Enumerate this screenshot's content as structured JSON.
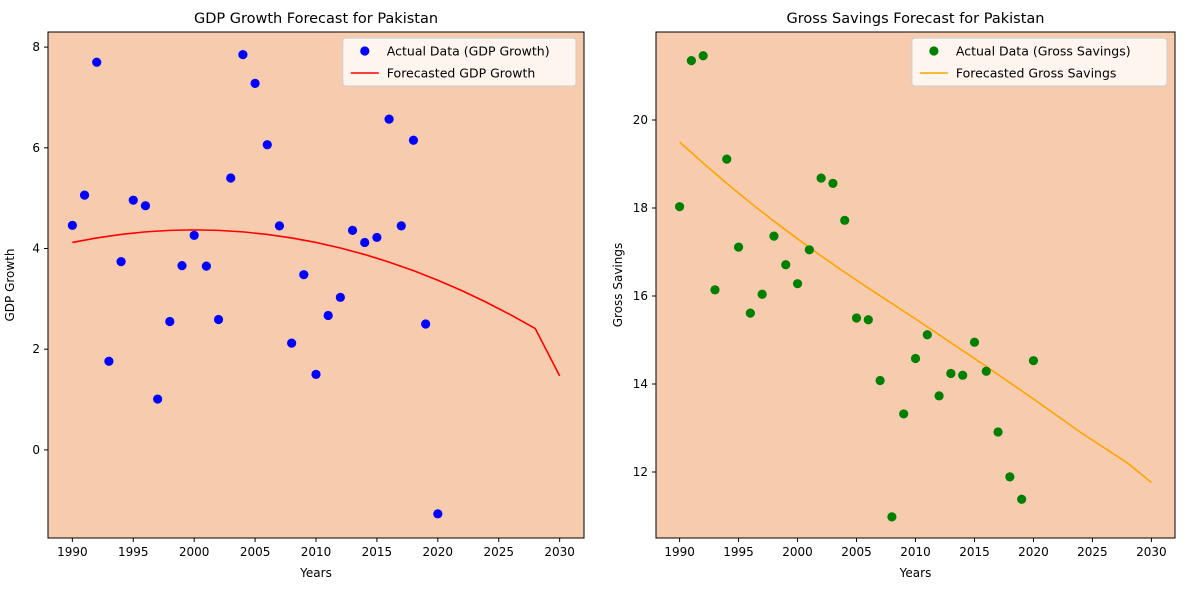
{
  "figure": {
    "chart_data": [
      {
        "type": "scatter",
        "title": "GDP Growth Forecast for Pakistan",
        "xlabel": "Years",
        "ylabel": "GDP Growth",
        "xlim": [
          1988.0,
          2032.0
        ],
        "ylim": [
          -1.75,
          8.3
        ],
        "xticks": [
          1990,
          1995,
          2000,
          2005,
          2010,
          2015,
          2020,
          2025,
          2030
        ],
        "yticks": [
          0,
          2,
          4,
          6,
          8
        ],
        "background": "#f7cbad",
        "legend_position": "top-right",
        "series": [
          {
            "name": "Actual Data (GDP Growth)",
            "kind": "scatter",
            "color": "#0000ff",
            "x": [
              1990,
              1991,
              1992,
              1993,
              1994,
              1995,
              1996,
              1997,
              1998,
              1999,
              2000,
              2001,
              2002,
              2003,
              2004,
              2005,
              2006,
              2007,
              2008,
              2009,
              2010,
              2011,
              2012,
              2013,
              2014,
              2015,
              2016,
              2017,
              2018,
              2019,
              2020
            ],
            "y": [
              4.46,
              5.06,
              7.7,
              1.76,
              3.74,
              4.96,
              4.85,
              1.01,
              2.55,
              3.66,
              4.26,
              3.65,
              2.59,
              5.4,
              7.85,
              7.28,
              6.06,
              4.45,
              2.12,
              3.48,
              1.5,
              2.67,
              3.03,
              4.36,
              4.12,
              4.22,
              6.57,
              4.45,
              6.15,
              2.5,
              -1.27
            ]
          },
          {
            "name": "Forecasted GDP Growth",
            "kind": "line",
            "color": "#ff0000",
            "x": [
              1990,
              1992,
              1994,
              1996,
              1998,
              2000,
              2002,
              2004,
              2006,
              2008,
              2010,
              2012,
              2014,
              2016,
              2018,
              2020,
              2022,
              2024,
              2026,
              2028,
              2030
            ],
            "y": [
              4.12,
              4.21,
              4.28,
              4.33,
              4.36,
              4.37,
              4.36,
              4.33,
              4.28,
              4.21,
              4.12,
              4.01,
              3.88,
              3.73,
              3.56,
              3.37,
              3.16,
              2.93,
              2.68,
              2.41,
              1.47
            ]
          }
        ]
      },
      {
        "type": "scatter",
        "title": "Gross Savings Forecast for Pakistan",
        "xlabel": "Years",
        "ylabel": "Gross Savings",
        "xlim": [
          1988.0,
          2032.0
        ],
        "ylim": [
          10.5,
          22.0
        ],
        "xticks": [
          1990,
          1995,
          2000,
          2005,
          2010,
          2015,
          2020,
          2025,
          2030
        ],
        "yticks": [
          12,
          14,
          16,
          18,
          20
        ],
        "background": "#f7cbad",
        "legend_position": "top-right",
        "series": [
          {
            "name": "Actual Data (Gross Savings)",
            "kind": "scatter",
            "color": "#008000",
            "x": [
              1990,
              1991,
              1992,
              1993,
              1994,
              1995,
              1996,
              1997,
              1998,
              1999,
              2000,
              2001,
              2002,
              2003,
              2004,
              2005,
              2006,
              2007,
              2008,
              2009,
              2010,
              2011,
              2012,
              2013,
              2014,
              2015,
              2016,
              2017,
              2018,
              2019,
              2020
            ],
            "y": [
              18.03,
              21.35,
              21.46,
              16.14,
              19.11,
              17.11,
              15.61,
              16.04,
              17.36,
              16.71,
              16.28,
              17.05,
              18.68,
              18.56,
              17.72,
              15.5,
              15.46,
              14.08,
              10.98,
              13.32,
              14.58,
              15.12,
              13.73,
              14.24,
              14.2,
              14.95,
              14.29,
              12.91,
              11.89,
              11.38,
              14.53
            ]
          },
          {
            "name": "Forecasted Gross Savings",
            "kind": "line",
            "color": "#ffa500",
            "x": [
              1990,
              1992,
              1994,
              1996,
              1998,
              2000,
              2002,
              2004,
              2006,
              2008,
              2010,
              2012,
              2014,
              2016,
              2018,
              2020,
              2022,
              2024,
              2026,
              2028,
              2030
            ],
            "y": [
              19.5,
              19.02,
              18.56,
              18.12,
              17.7,
              17.3,
              16.91,
              16.54,
              16.18,
              15.83,
              15.48,
              15.12,
              14.76,
              14.4,
              14.03,
              13.66,
              13.28,
              12.9,
              12.55,
              12.2,
              11.76
            ]
          }
        ]
      }
    ]
  }
}
